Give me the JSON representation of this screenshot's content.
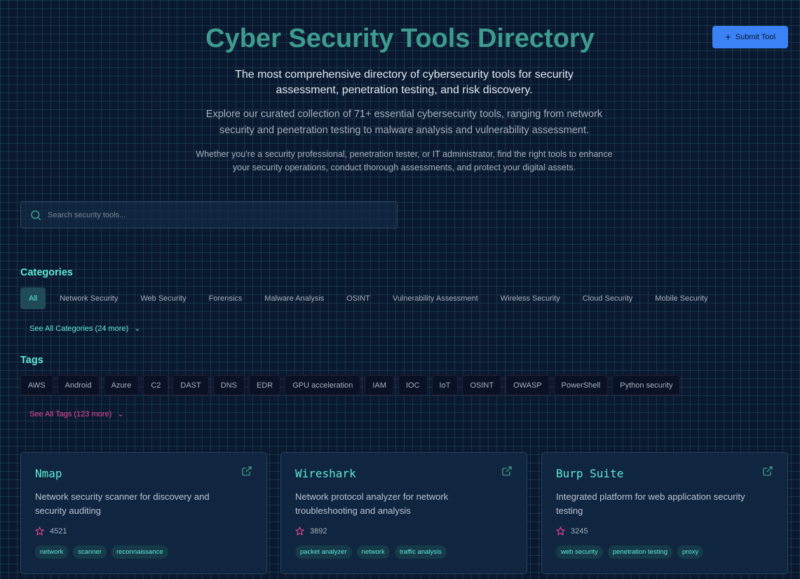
{
  "header": {
    "title": "Cyber Security Tools Directory",
    "subtitle": "The most comprehensive directory of cybersecurity tools for security assessment, penetration testing, and risk discovery.",
    "intro": "Explore our curated collection of 71+ essential cybersecurity tools, ranging from network security and penetration testing to malware analysis and vulnerability assessment.",
    "detail": "Whether you're a security professional, penetration tester, or IT administrator, find the right tools to enhance your security operations, conduct thorough assessments, and protect your digital assets.",
    "submit_label": "Submit Tool"
  },
  "search": {
    "placeholder": "Search security tools...",
    "value": ""
  },
  "categories": {
    "heading": "Categories",
    "items": [
      "All",
      "Network Security",
      "Web Security",
      "Forensics",
      "Malware Analysis",
      "OSINT",
      "Vulnerability Assessment",
      "Wireless Security",
      "Cloud Security",
      "Mobile Security"
    ],
    "active": "All",
    "more_label": "See All Categories (24 more)"
  },
  "tags": {
    "heading": "Tags",
    "items": [
      "AWS",
      "Android",
      "Azure",
      "C2",
      "DAST",
      "DNS",
      "EDR",
      "GPU acceleration",
      "IAM",
      "IOC",
      "IoT",
      "OSINT",
      "OWASP",
      "PowerShell",
      "Python security"
    ],
    "more_label": "See All Tags (123 more)"
  },
  "tools": [
    {
      "name": "Nmap",
      "description": "Network security scanner for discovery and security auditing",
      "stars": "4521",
      "tags": [
        "network",
        "scanner",
        "reconnaissance"
      ]
    },
    {
      "name": "Wireshark",
      "description": "Network protocol analyzer for network troubleshooting and analysis",
      "stars": "3892",
      "tags": [
        "packet analyzer",
        "network",
        "traffic analysis"
      ]
    },
    {
      "name": "Burp Suite",
      "description": "Integrated platform for web application security testing",
      "stars": "3245",
      "tags": [
        "web security",
        "penetration testing",
        "proxy"
      ]
    }
  ],
  "colors": {
    "accent": "#5eead4",
    "title": "#3e9c8f",
    "button": "#3b82f6",
    "pink": "#ec4899",
    "background": "#0b1930"
  }
}
